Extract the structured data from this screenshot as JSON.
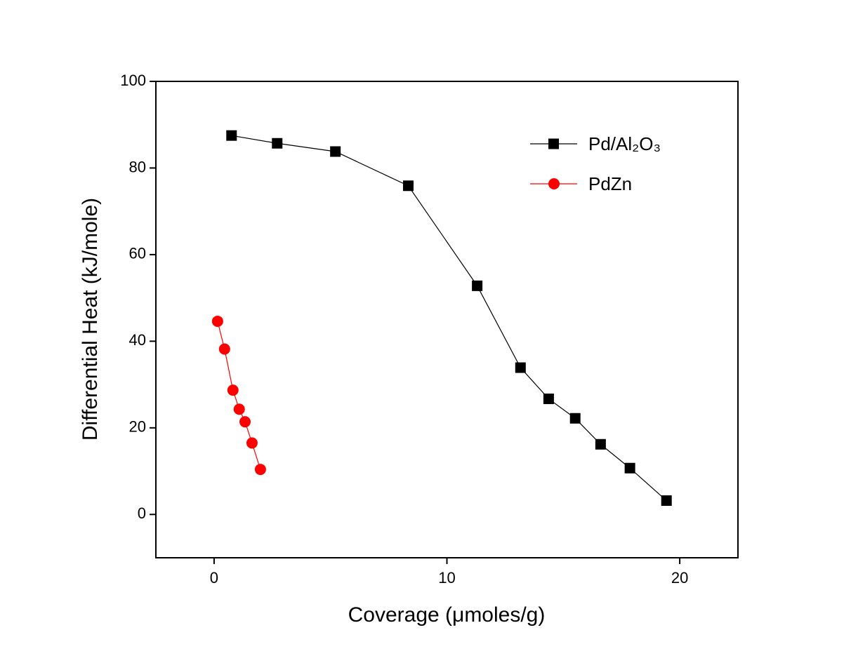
{
  "chart_data": {
    "type": "line",
    "x_label": "Coverage (μmoles/g)",
    "y_label": "Differential Heat (kJ/mole)",
    "xlim": [
      -2.5,
      22.5
    ],
    "xticks": [
      0,
      10,
      20
    ],
    "ylim": [
      -10,
      100
    ],
    "yticks": [
      0,
      20,
      40,
      60,
      80,
      100
    ],
    "legend_position": "upper right",
    "series": [
      {
        "name": "Pd/Al₂O₃",
        "color": "#000000",
        "marker": "square",
        "x": [
          0.75,
          2.71,
          5.21,
          8.34,
          11.3,
          13.16,
          14.37,
          15.51,
          16.6,
          17.86,
          19.43
        ],
        "values": [
          87.5,
          85.7,
          83.8,
          75.9,
          52.8,
          33.9,
          26.7,
          22.2,
          16.2,
          10.7,
          3.2
        ]
      },
      {
        "name": "PdZn",
        "color": "#ff0000",
        "marker": "circle",
        "x": [
          0.15,
          0.45,
          0.81,
          1.08,
          1.33,
          1.63,
          1.99
        ],
        "values": [
          44.6,
          38.2,
          28.7,
          24.3,
          21.4,
          16.5,
          10.4
        ]
      }
    ]
  }
}
